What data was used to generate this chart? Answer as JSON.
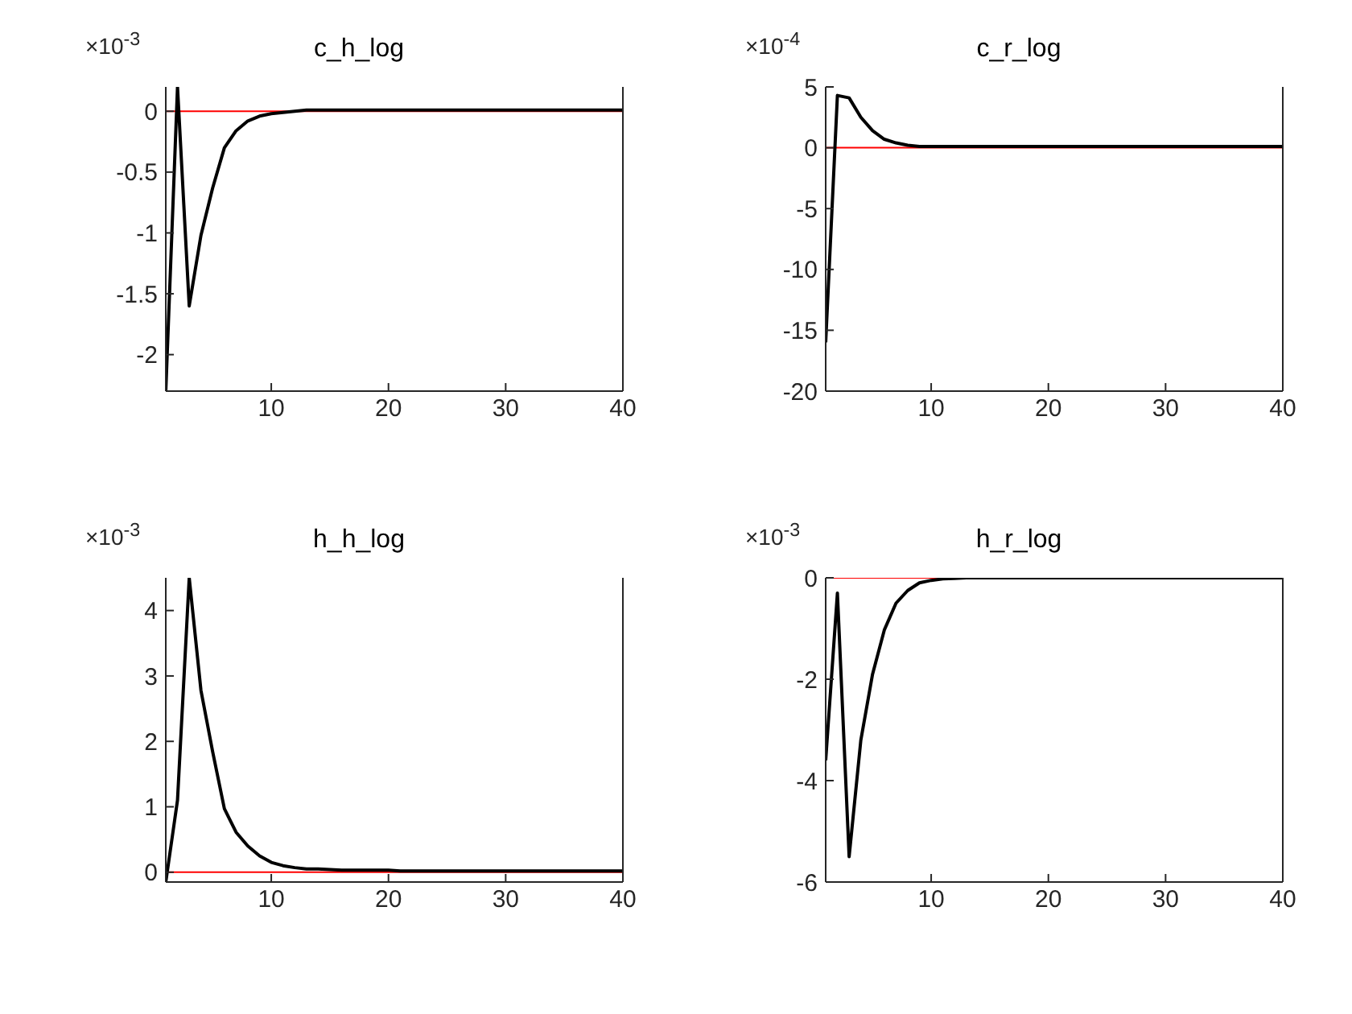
{
  "chart_data": [
    {
      "type": "line",
      "title": "c_h_log",
      "annotations": [
        "×10$^{-3}$"
      ],
      "x": [
        1,
        2,
        3,
        4,
        5,
        6,
        7,
        8,
        9,
        10,
        11,
        12,
        13,
        14,
        15,
        16,
        17,
        18,
        19,
        20,
        21,
        22,
        23,
        24,
        25,
        26,
        27,
        28,
        29,
        30,
        31,
        32,
        33,
        34,
        35,
        36,
        37,
        38,
        39,
        40
      ],
      "series": [
        {
          "color": "#000000",
          "values": [
            -2.3,
            0.2,
            -1.6,
            -1.02,
            -0.63,
            -0.3,
            -0.16,
            -0.08,
            -0.04,
            -0.02,
            -0.01,
            0,
            0.01,
            0.01,
            0.01,
            0.01,
            0.01,
            0.01,
            0.01,
            0.01,
            0.01,
            0.01,
            0.01,
            0.01,
            0.01,
            0.01,
            0.01,
            0.01,
            0.01,
            0.01,
            0.01,
            0.01,
            0.01,
            0.01,
            0.01,
            0.01,
            0.01,
            0.01,
            0.01,
            0.01
          ]
        }
      ],
      "xlim": [
        1,
        40
      ],
      "xticks": [
        10,
        20,
        30,
        40
      ],
      "ylim": [
        -2.3,
        0.2
      ],
      "yticks": [
        -2,
        -1.5,
        -1,
        -0.5,
        0
      ],
      "ref_lines": [
        {
          "axis": "y",
          "value": 0,
          "color": "#ff0000"
        }
      ],
      "grid": false,
      "legend": false,
      "marker": "none",
      "line_style": "solid"
    },
    {
      "type": "line",
      "title": "c_r_log",
      "annotations": [
        "×10$^{-4}$"
      ],
      "x": [
        1,
        2,
        3,
        4,
        5,
        6,
        7,
        8,
        9,
        10,
        11,
        12,
        13,
        14,
        15,
        16,
        17,
        18,
        19,
        20,
        21,
        22,
        23,
        24,
        25,
        26,
        27,
        28,
        29,
        30,
        31,
        32,
        33,
        34,
        35,
        36,
        37,
        38,
        39,
        40
      ],
      "series": [
        {
          "color": "#000000",
          "values": [
            -16,
            4.3,
            4.1,
            2.5,
            1.4,
            0.7,
            0.4,
            0.2,
            0.1,
            0.1,
            0.1,
            0.1,
            0.1,
            0.1,
            0.1,
            0.1,
            0.1,
            0.1,
            0.1,
            0.1,
            0.1,
            0.1,
            0.1,
            0.1,
            0.1,
            0.1,
            0.1,
            0.1,
            0.1,
            0.1,
            0.1,
            0.1,
            0.1,
            0.1,
            0.1,
            0.1,
            0.1,
            0.1,
            0.1,
            0.1
          ]
        }
      ],
      "xlim": [
        1,
        40
      ],
      "xticks": [
        10,
        20,
        30,
        40
      ],
      "ylim": [
        -20,
        5
      ],
      "yticks": [
        -20,
        -15,
        -10,
        -5,
        0,
        5
      ],
      "ref_lines": [
        {
          "axis": "y",
          "value": 0,
          "color": "#ff0000"
        }
      ],
      "grid": false,
      "legend": false,
      "marker": "none",
      "line_style": "solid"
    },
    {
      "type": "line",
      "title": "h_h_log",
      "annotations": [
        "×10$^{-3}$"
      ],
      "x": [
        1,
        2,
        3,
        4,
        5,
        6,
        7,
        8,
        9,
        10,
        11,
        12,
        13,
        14,
        15,
        16,
        17,
        18,
        19,
        20,
        21,
        22,
        23,
        24,
        25,
        26,
        27,
        28,
        29,
        30,
        31,
        32,
        33,
        34,
        35,
        36,
        37,
        38,
        39,
        40
      ],
      "series": [
        {
          "color": "#000000",
          "values": [
            -0.15,
            1.1,
            4.5,
            2.78,
            1.84,
            0.97,
            0.61,
            0.4,
            0.25,
            0.15,
            0.1,
            0.07,
            0.05,
            0.05,
            0.04,
            0.03,
            0.03,
            0.03,
            0.03,
            0.03,
            0.02,
            0.02,
            0.02,
            0.02,
            0.02,
            0.02,
            0.02,
            0.02,
            0.02,
            0.02,
            0.02,
            0.02,
            0.02,
            0.02,
            0.02,
            0.02,
            0.02,
            0.02,
            0.02,
            0.02
          ]
        }
      ],
      "xlim": [
        1,
        40
      ],
      "xticks": [
        10,
        20,
        30,
        40
      ],
      "ylim": [
        -0.15,
        4.5
      ],
      "yticks": [
        0,
        1,
        2,
        3,
        4
      ],
      "ref_lines": [
        {
          "axis": "y",
          "value": 0,
          "color": "#ff0000"
        }
      ],
      "grid": false,
      "legend": false,
      "marker": "none",
      "line_style": "solid"
    },
    {
      "type": "line",
      "title": "h_r_log",
      "annotations": [
        "×10$^{-3}$"
      ],
      "x": [
        1,
        2,
        3,
        4,
        5,
        6,
        7,
        8,
        9,
        10,
        11,
        12,
        13,
        14,
        15,
        16,
        17,
        18,
        19,
        20,
        21,
        22,
        23,
        24,
        25,
        26,
        27,
        28,
        29,
        30,
        31,
        32,
        33,
        34,
        35,
        36,
        37,
        38,
        39,
        40
      ],
      "series": [
        {
          "color": "#000000",
          "values": [
            -3.6,
            -0.3,
            -5.5,
            -3.2,
            -1.9,
            -1.03,
            -0.5,
            -0.25,
            -0.1,
            -0.05,
            -0.02,
            -0.01,
            0,
            0,
            0,
            0,
            0,
            0,
            0,
            0,
            0,
            0,
            0,
            0,
            0,
            0,
            0,
            0,
            0,
            0,
            0,
            0,
            0,
            0,
            0,
            0,
            0,
            0,
            0,
            0
          ]
        }
      ],
      "xlim": [
        1,
        40
      ],
      "xticks": [
        10,
        20,
        30,
        40
      ],
      "ylim": [
        -6,
        0
      ],
      "yticks": [
        -6,
        -4,
        -2,
        0
      ],
      "ref_lines": [
        {
          "axis": "y",
          "value": 0,
          "color": "#ff0000"
        }
      ],
      "grid": false,
      "legend": false,
      "marker": "none",
      "line_style": "solid"
    }
  ]
}
